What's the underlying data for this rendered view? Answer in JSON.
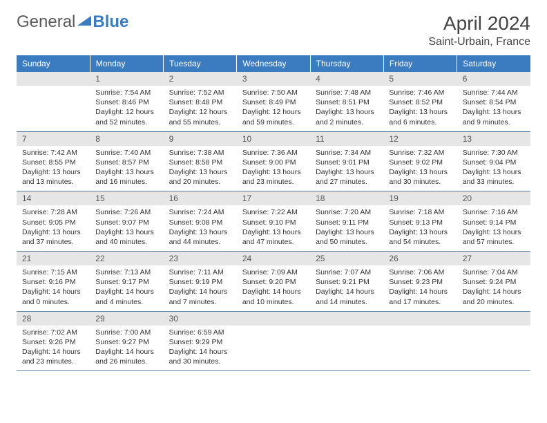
{
  "brand": {
    "part1": "General",
    "part2": "Blue"
  },
  "title": "April 2024",
  "location": "Saint-Urbain, France",
  "colors": {
    "header_bg": "#3b7bbf",
    "daynum_bg": "#e6e6e6",
    "rule": "#5b7a9a",
    "text": "#333333"
  },
  "weekdays": [
    "Sunday",
    "Monday",
    "Tuesday",
    "Wednesday",
    "Thursday",
    "Friday",
    "Saturday"
  ],
  "start_offset": 1,
  "days": [
    {
      "n": 1,
      "sunrise": "7:54 AM",
      "sunset": "8:46 PM",
      "daylight": "12 hours and 52 minutes."
    },
    {
      "n": 2,
      "sunrise": "7:52 AM",
      "sunset": "8:48 PM",
      "daylight": "12 hours and 55 minutes."
    },
    {
      "n": 3,
      "sunrise": "7:50 AM",
      "sunset": "8:49 PM",
      "daylight": "12 hours and 59 minutes."
    },
    {
      "n": 4,
      "sunrise": "7:48 AM",
      "sunset": "8:51 PM",
      "daylight": "13 hours and 2 minutes."
    },
    {
      "n": 5,
      "sunrise": "7:46 AM",
      "sunset": "8:52 PM",
      "daylight": "13 hours and 6 minutes."
    },
    {
      "n": 6,
      "sunrise": "7:44 AM",
      "sunset": "8:54 PM",
      "daylight": "13 hours and 9 minutes."
    },
    {
      "n": 7,
      "sunrise": "7:42 AM",
      "sunset": "8:55 PM",
      "daylight": "13 hours and 13 minutes."
    },
    {
      "n": 8,
      "sunrise": "7:40 AM",
      "sunset": "8:57 PM",
      "daylight": "13 hours and 16 minutes."
    },
    {
      "n": 9,
      "sunrise": "7:38 AM",
      "sunset": "8:58 PM",
      "daylight": "13 hours and 20 minutes."
    },
    {
      "n": 10,
      "sunrise": "7:36 AM",
      "sunset": "9:00 PM",
      "daylight": "13 hours and 23 minutes."
    },
    {
      "n": 11,
      "sunrise": "7:34 AM",
      "sunset": "9:01 PM",
      "daylight": "13 hours and 27 minutes."
    },
    {
      "n": 12,
      "sunrise": "7:32 AM",
      "sunset": "9:02 PM",
      "daylight": "13 hours and 30 minutes."
    },
    {
      "n": 13,
      "sunrise": "7:30 AM",
      "sunset": "9:04 PM",
      "daylight": "13 hours and 33 minutes."
    },
    {
      "n": 14,
      "sunrise": "7:28 AM",
      "sunset": "9:05 PM",
      "daylight": "13 hours and 37 minutes."
    },
    {
      "n": 15,
      "sunrise": "7:26 AM",
      "sunset": "9:07 PM",
      "daylight": "13 hours and 40 minutes."
    },
    {
      "n": 16,
      "sunrise": "7:24 AM",
      "sunset": "9:08 PM",
      "daylight": "13 hours and 44 minutes."
    },
    {
      "n": 17,
      "sunrise": "7:22 AM",
      "sunset": "9:10 PM",
      "daylight": "13 hours and 47 minutes."
    },
    {
      "n": 18,
      "sunrise": "7:20 AM",
      "sunset": "9:11 PM",
      "daylight": "13 hours and 50 minutes."
    },
    {
      "n": 19,
      "sunrise": "7:18 AM",
      "sunset": "9:13 PM",
      "daylight": "13 hours and 54 minutes."
    },
    {
      "n": 20,
      "sunrise": "7:16 AM",
      "sunset": "9:14 PM",
      "daylight": "13 hours and 57 minutes."
    },
    {
      "n": 21,
      "sunrise": "7:15 AM",
      "sunset": "9:16 PM",
      "daylight": "14 hours and 0 minutes."
    },
    {
      "n": 22,
      "sunrise": "7:13 AM",
      "sunset": "9:17 PM",
      "daylight": "14 hours and 4 minutes."
    },
    {
      "n": 23,
      "sunrise": "7:11 AM",
      "sunset": "9:19 PM",
      "daylight": "14 hours and 7 minutes."
    },
    {
      "n": 24,
      "sunrise": "7:09 AM",
      "sunset": "9:20 PM",
      "daylight": "14 hours and 10 minutes."
    },
    {
      "n": 25,
      "sunrise": "7:07 AM",
      "sunset": "9:21 PM",
      "daylight": "14 hours and 14 minutes."
    },
    {
      "n": 26,
      "sunrise": "7:06 AM",
      "sunset": "9:23 PM",
      "daylight": "14 hours and 17 minutes."
    },
    {
      "n": 27,
      "sunrise": "7:04 AM",
      "sunset": "9:24 PM",
      "daylight": "14 hours and 20 minutes."
    },
    {
      "n": 28,
      "sunrise": "7:02 AM",
      "sunset": "9:26 PM",
      "daylight": "14 hours and 23 minutes."
    },
    {
      "n": 29,
      "sunrise": "7:00 AM",
      "sunset": "9:27 PM",
      "daylight": "14 hours and 26 minutes."
    },
    {
      "n": 30,
      "sunrise": "6:59 AM",
      "sunset": "9:29 PM",
      "daylight": "14 hours and 30 minutes."
    }
  ],
  "labels": {
    "sunrise": "Sunrise:",
    "sunset": "Sunset:",
    "daylight": "Daylight:"
  }
}
